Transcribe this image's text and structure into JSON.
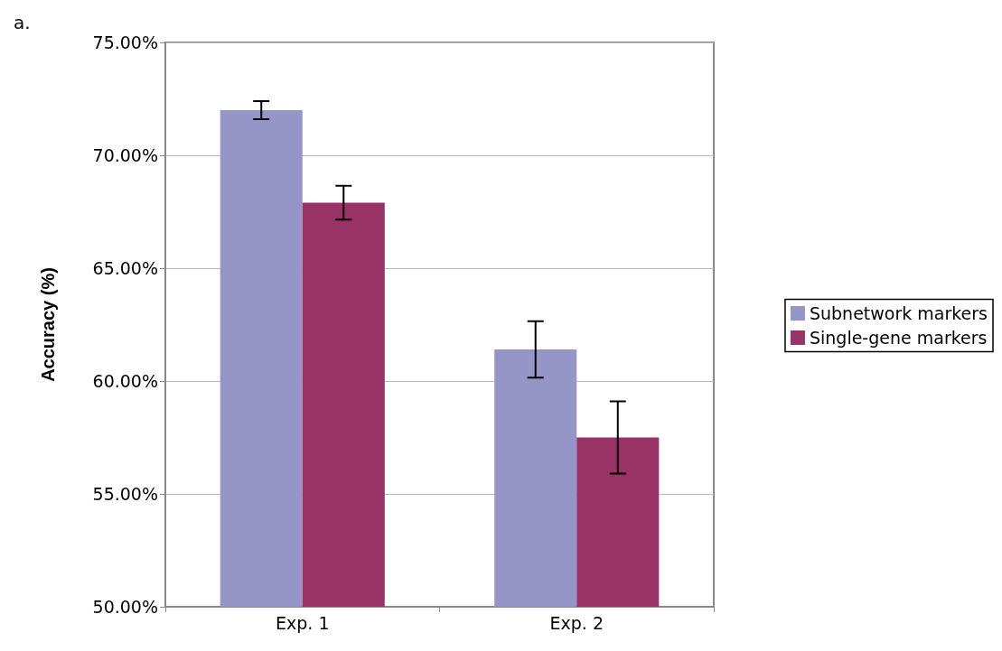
{
  "chart_data": {
    "type": "bar",
    "title": "a.",
    "ylabel": "Accuracy (%)",
    "categories": [
      "Exp. 1",
      "Exp. 2"
    ],
    "series": [
      {
        "name": "Subnetwork markers",
        "color": "#9595c8",
        "values": [
          72.0,
          61.4
        ],
        "errors": [
          0.4,
          1.25
        ]
      },
      {
        "name": "Single-gene markers",
        "color": "#993366",
        "values": [
          67.9,
          57.5
        ],
        "errors": [
          0.75,
          1.6
        ]
      }
    ],
    "ylim": [
      50,
      75
    ],
    "yticks": [
      {
        "value": 50,
        "label": "50.00%"
      },
      {
        "value": 55,
        "label": "55.00%"
      },
      {
        "value": 60,
        "label": "60.00%"
      },
      {
        "value": 65,
        "label": "65.00%"
      },
      {
        "value": 70,
        "label": "70.00%"
      },
      {
        "value": 75,
        "label": "75.00%"
      }
    ],
    "grid": "y",
    "legend": "right"
  }
}
